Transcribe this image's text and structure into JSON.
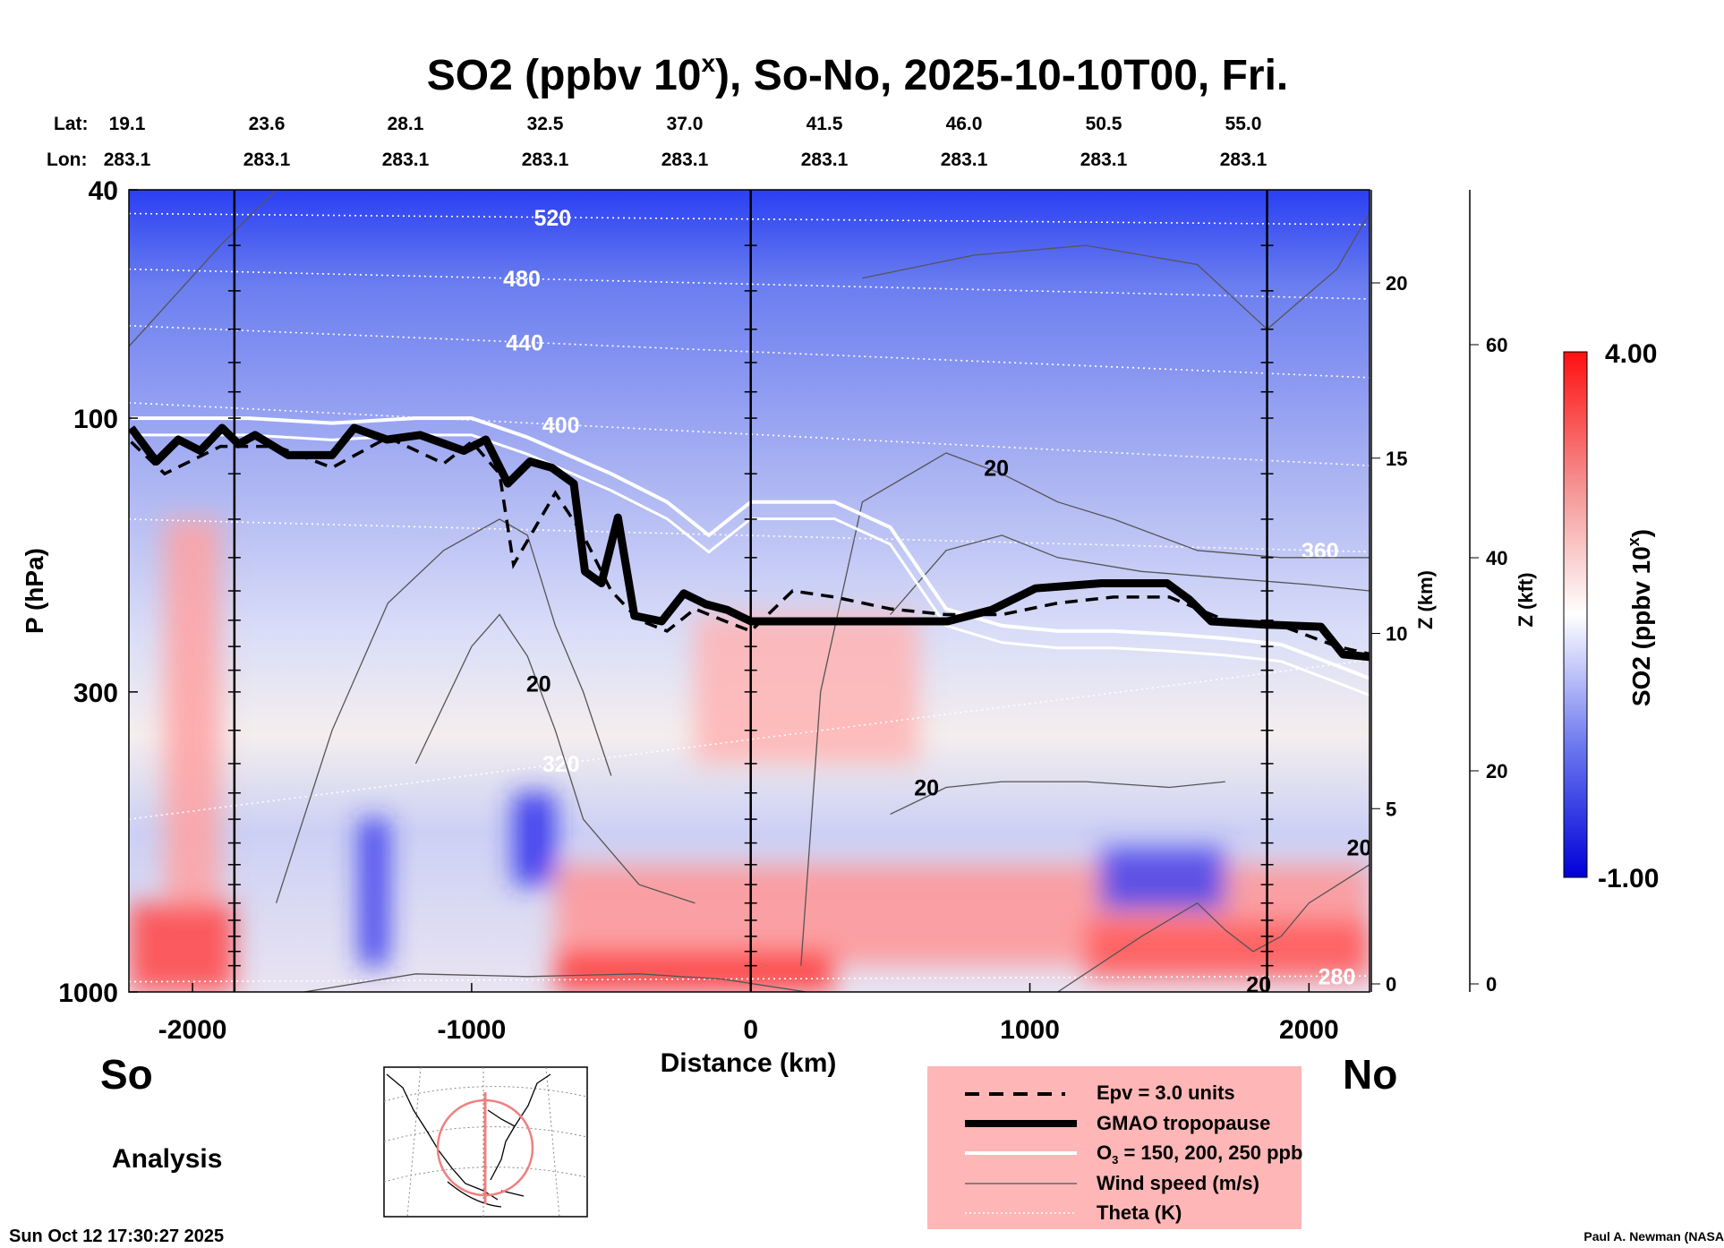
{
  "chart_data": {
    "type": "heatmap",
    "title": "SO2 (ppbv 10",
    "title_sup": "x",
    "title_rest": "), So-No, 2025-10-10T00, Fri.",
    "lat_label": "Lat:",
    "lon_label": "Lon:",
    "lats": [
      "19.1",
      "23.6",
      "28.1",
      "32.5",
      "37.0",
      "41.5",
      "46.0",
      "50.5",
      "55.0"
    ],
    "lons": [
      "283.1",
      "283.1",
      "283.1",
      "283.1",
      "283.1",
      "283.1",
      "283.1",
      "283.1",
      "283.1"
    ],
    "xlabel": "Distance (km)",
    "ylabel": "P (hPa)",
    "xlim": [
      -2228,
      2217
    ],
    "ylim_hpa": [
      1000,
      40
    ],
    "x_ticks": [
      -2000,
      -1000,
      0,
      1000,
      2000
    ],
    "x_tick_labels": [
      "-2000",
      "-1000",
      "0",
      "1000",
      "2000"
    ],
    "p_ticks": [
      40,
      100,
      300,
      1000
    ],
    "p_tick_labels": [
      "40",
      "100",
      "300",
      "1000"
    ],
    "z_km_label": "Z (km)",
    "z_km_ticks": [
      0,
      5,
      10,
      15,
      20
    ],
    "z_km_tick_labels": [
      "0",
      "5",
      "10",
      "15",
      "20"
    ],
    "z_kft_label": "Z (kft)",
    "z_kft_ticks": [
      0,
      20,
      40,
      60
    ],
    "z_kft_tick_labels": [
      "0",
      "20",
      "40",
      "60"
    ],
    "vertical_markers_km": [
      -1850,
      0,
      1850
    ],
    "colorbar": {
      "label": "SO2 (ppbv 10",
      "label_sup": "x",
      "label_end": ")",
      "max_label": "4.00",
      "min_label": "-1.00",
      "min": -1,
      "max": 4,
      "colors": [
        "#0000e0",
        "#ffffff",
        "#ff1a1a"
      ]
    },
    "so2_field_features": [
      {
        "km": [
          -2228,
          -1850
        ],
        "p": [
          700,
          1000
        ],
        "value": 3.2
      },
      {
        "km": [
          -2100,
          -1900
        ],
        "p": [
          150,
          700
        ],
        "value": 1.6
      },
      {
        "km": [
          -700,
          2217
        ],
        "p": [
          600,
          900
        ],
        "value": 1.8
      },
      {
        "km": [
          -700,
          300
        ],
        "p": [
          850,
          1000
        ],
        "value": 3.5
      },
      {
        "km": [
          1200,
          2217
        ],
        "p": [
          750,
          950
        ],
        "value": 2.8
      },
      {
        "km": [
          -200,
          600
        ],
        "p": [
          220,
          400
        ],
        "value": 1.3
      },
      {
        "km": [
          -1400,
          -1300
        ],
        "p": [
          500,
          900
        ],
        "value": -0.9
      },
      {
        "km": [
          -850,
          -700
        ],
        "p": [
          450,
          650
        ],
        "value": -0.9
      },
      {
        "km": [
          1250,
          1700
        ],
        "p": [
          560,
          720
        ],
        "value": -0.8
      }
    ],
    "tropopause": {
      "km": [
        -2220,
        -2130,
        -2051,
        -1972,
        -1894,
        -1835,
        -1776,
        -1657,
        -1500,
        -1421,
        -1303,
        -1185,
        -1028,
        -949,
        -870,
        -791,
        -713,
        -634,
        -594,
        -535,
        -476,
        -417,
        -319,
        -240,
        -161,
        -83,
        0,
        547,
        705,
        862,
        1020,
        1256,
        1492,
        1571,
        1650,
        1846,
        2043,
        2122,
        2224
      ],
      "hpa": [
        104,
        119,
        109,
        114,
        104,
        111,
        107,
        116,
        116,
        104,
        109,
        107,
        114,
        109,
        130,
        119,
        122,
        130,
        185,
        194,
        149,
        221,
        226,
        202,
        211,
        216,
        226,
        226,
        226,
        216,
        198,
        194,
        194,
        207,
        226,
        229,
        231,
        258,
        261
      ]
    },
    "epv_3": {
      "km": [
        -2220,
        -2100,
        -1900,
        -1700,
        -1500,
        -1300,
        -1100,
        -1000,
        -900,
        -850,
        -700,
        -600,
        -500,
        -400,
        -300,
        -200,
        -100,
        0,
        150,
        300,
        500,
        700,
        900,
        1100,
        1300,
        1500,
        1700,
        1900,
        2100,
        2224
      ],
      "hpa": [
        110,
        125,
        112,
        112,
        122,
        108,
        120,
        110,
        125,
        180,
        135,
        160,
        200,
        225,
        235,
        215,
        225,
        235,
        200,
        205,
        215,
        220,
        220,
        210,
        205,
        205,
        225,
        230,
        250,
        258
      ]
    },
    "o3_contour": {
      "km": [
        -2220,
        -1800,
        -1500,
        -1200,
        -1000,
        -800,
        -500,
        -300,
        -150,
        0,
        300,
        500,
        700,
        900,
        1100,
        1300,
        1500,
        1700,
        1900,
        2100,
        2224
      ],
      "hpa": [
        100,
        100,
        102,
        100,
        100,
        108,
        125,
        140,
        160,
        140,
        140,
        155,
        215,
        230,
        235,
        235,
        238,
        242,
        248,
        270,
        285
      ]
    },
    "wind_speed_labels": [
      {
        "text": "20",
        "km": 880,
        "hpa": 122
      },
      {
        "text": "20",
        "km": -760,
        "hpa": 290
      },
      {
        "text": "20",
        "km": 630,
        "hpa": 440
      },
      {
        "text": "20",
        "km": 2180,
        "hpa": 560
      },
      {
        "text": "20",
        "km": 1820,
        "hpa": 970
      }
    ],
    "theta_levels": [
      {
        "text": "520",
        "label_km": -710,
        "hpa_left": 44,
        "hpa_right": 46
      },
      {
        "text": "480",
        "label_km": -820,
        "hpa_left": 55,
        "hpa_right": 62
      },
      {
        "text": "440",
        "label_km": -810,
        "hpa_left": 69,
        "hpa_right": 85
      },
      {
        "text": "400",
        "label_km": -680,
        "hpa_left": 94,
        "hpa_right": 121
      },
      {
        "text": "360",
        "label_km": 2040,
        "hpa_left": 150,
        "hpa_right": 171
      },
      {
        "text": "320",
        "label_km": -680,
        "hpa_left": 500,
        "hpa_right": 264
      },
      {
        "text": "280",
        "label_km": 2100,
        "hpa_left": 960,
        "hpa_right": 938
      }
    ]
  },
  "labels": {
    "south": "So",
    "north": "No",
    "analysis": "Analysis",
    "timestamp": "Sun Oct 12 17:30:27 2025",
    "credit": "Paul A. Newman (NASA"
  },
  "legend": {
    "items": [
      {
        "label": "Epv = 3.0 units",
        "style": "dashed"
      },
      {
        "label": "GMAO tropopause",
        "style": "thick"
      },
      {
        "label": "O",
        "sub": "3",
        "rest": " = 150, 200, 250 ppb",
        "style": "white"
      },
      {
        "label": "Wind speed (m/s)",
        "style": "thin"
      },
      {
        "label": "Theta (K)",
        "style": "dotted"
      }
    ],
    "background": "#ffb6b6"
  }
}
